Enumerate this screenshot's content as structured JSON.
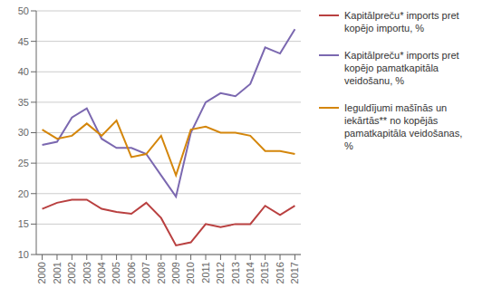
{
  "chart_data": {
    "type": "line",
    "x": [
      2000,
      2001,
      2002,
      2003,
      2004,
      2005,
      2006,
      2007,
      2008,
      2009,
      2010,
      2011,
      2012,
      2013,
      2014,
      2015,
      2016,
      2017
    ],
    "xlim": [
      1999.6,
      2017.4
    ],
    "xticks": [
      2000,
      2001,
      2002,
      2003,
      2004,
      2005,
      2006,
      2007,
      2008,
      2009,
      2010,
      2011,
      2012,
      2013,
      2014,
      2015,
      2016,
      2017
    ],
    "ylim": [
      10,
      50
    ],
    "yticks": [
      10,
      15,
      20,
      25,
      30,
      35,
      40,
      45,
      50
    ],
    "grid": true,
    "legend": "right",
    "series": [
      {
        "name": "Kapitālpreču* imports pret\nkopējo importu, %",
        "color": "#b94040",
        "values": [
          17.5,
          18.5,
          19.0,
          19.0,
          17.5,
          17.0,
          16.7,
          18.5,
          16.0,
          11.5,
          12.0,
          15.0,
          14.5,
          15.0,
          15.0,
          18.0,
          16.5,
          18.0
        ]
      },
      {
        "name": "Kapitālpreču* imports pret\nkopējo pamatkapitāla\nveidošanu, %",
        "color": "#7b68b0",
        "values": [
          28.0,
          28.5,
          32.5,
          34.0,
          29.0,
          27.5,
          27.5,
          26.5,
          23.0,
          19.5,
          30.0,
          35.0,
          36.5,
          36.0,
          38.0,
          44.0,
          43.0,
          47.0
        ]
      },
      {
        "name": "Ieguldījumi mašīnās un\niekārtās** no kopējās\npamatkapitāla veidošanas,\n%",
        "color": "#d4860b",
        "values": [
          30.5,
          29.0,
          29.5,
          31.5,
          29.5,
          32.0,
          26.0,
          26.5,
          29.5,
          23.0,
          30.5,
          31.0,
          30.0,
          30.0,
          29.5,
          27.0,
          27.0,
          26.5
        ]
      }
    ]
  }
}
